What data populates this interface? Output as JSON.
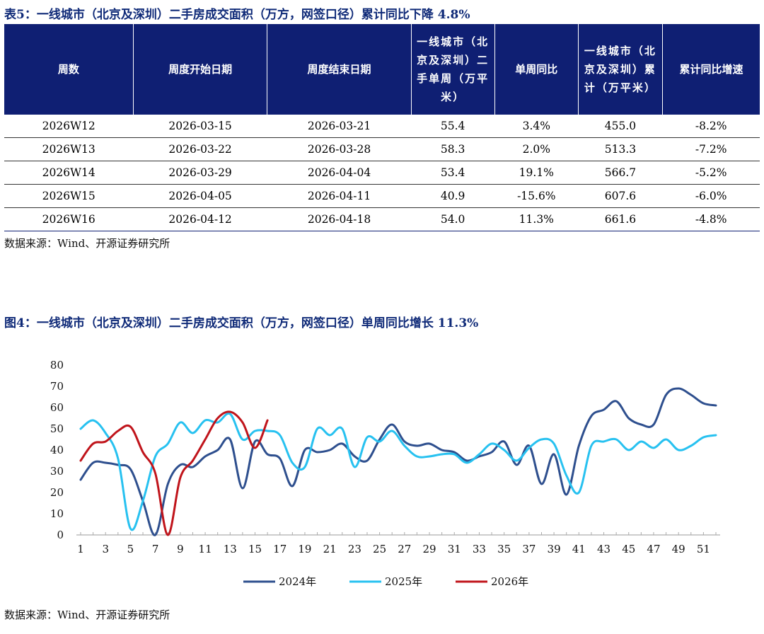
{
  "table": {
    "title": "表5：一线城市（北京及深圳）二手房成交面积（万方，网签口径）累计同比下降 4.8%",
    "headers": [
      "周数",
      "周度开始日期",
      "周度结束日期",
      "一线城市（北京及深圳）二手单周（万平米）",
      "单周同比",
      "一线城市（北京及深圳）累计（万平米）",
      "累计同比增速"
    ],
    "rows": [
      [
        "2026W12",
        "2026-03-15",
        "2026-03-21",
        "55.4",
        "3.4%",
        "455.0",
        "-8.2%"
      ],
      [
        "2026W13",
        "2026-03-22",
        "2026-03-28",
        "58.3",
        "2.0%",
        "513.3",
        "-7.2%"
      ],
      [
        "2026W14",
        "2026-03-29",
        "2026-04-04",
        "53.4",
        "19.1%",
        "566.7",
        "-5.2%"
      ],
      [
        "2026W15",
        "2026-04-05",
        "2026-04-11",
        "40.9",
        "-15.6%",
        "607.6",
        "-6.0%"
      ],
      [
        "2026W16",
        "2026-04-12",
        "2026-04-18",
        "54.0",
        "11.3%",
        "661.6",
        "-4.8%"
      ]
    ],
    "source": "数据来源：Wind、开源证券研究所"
  },
  "chart_data": {
    "type": "line",
    "title": "图4：一线城市（北京及深圳）二手房成交面积（万方，网签口径）单周同比增长 11.3%",
    "xlabel": "",
    "ylabel": "",
    "ylim": [
      0,
      80
    ],
    "yticks": [
      0,
      10,
      20,
      30,
      40,
      50,
      60,
      70,
      80
    ],
    "xlim": [
      1,
      52
    ],
    "xticks": [
      1,
      3,
      5,
      7,
      9,
      11,
      13,
      15,
      17,
      19,
      21,
      23,
      25,
      27,
      29,
      31,
      33,
      35,
      37,
      39,
      41,
      43,
      45,
      47,
      49,
      51
    ],
    "legend_position": "bottom",
    "grid": false,
    "series": [
      {
        "name": "2024年",
        "color": "#2e4f8e",
        "x": [
          1,
          2,
          3,
          4,
          5,
          6,
          7,
          8,
          9,
          10,
          11,
          12,
          13,
          14,
          15,
          16,
          17,
          18,
          19,
          20,
          21,
          22,
          23,
          24,
          25,
          26,
          27,
          28,
          29,
          30,
          31,
          32,
          33,
          34,
          35,
          36,
          37,
          38,
          39,
          40,
          41,
          42,
          43,
          44,
          45,
          46,
          47,
          48,
          49,
          50,
          51,
          52
        ],
        "values": [
          26,
          34,
          34,
          33,
          31,
          16,
          0,
          24,
          33,
          32,
          37,
          40,
          45,
          22,
          44,
          38,
          36,
          23,
          40,
          39,
          40,
          43,
          37,
          35,
          45,
          52,
          44,
          42,
          43,
          40,
          39,
          35,
          37,
          39,
          44,
          33,
          42,
          24,
          38,
          19,
          42,
          56,
          59,
          63,
          55,
          52,
          52,
          66,
          69,
          66,
          62,
          61
        ]
      },
      {
        "name": "2025年",
        "color": "#27c1f0",
        "x": [
          1,
          2,
          3,
          4,
          5,
          6,
          7,
          8,
          9,
          10,
          11,
          12,
          13,
          14,
          15,
          16,
          17,
          18,
          19,
          20,
          21,
          22,
          23,
          24,
          25,
          26,
          27,
          28,
          29,
          30,
          31,
          32,
          33,
          34,
          35,
          36,
          37,
          38,
          39,
          40,
          41,
          42,
          43,
          44,
          45,
          46,
          47,
          48,
          49,
          50,
          51,
          52
        ],
        "values": [
          50,
          54,
          48,
          36,
          3,
          16,
          37,
          43,
          53,
          48,
          54,
          53,
          57,
          45,
          49,
          49,
          47,
          34,
          32,
          50,
          47,
          50,
          32,
          46,
          44,
          49,
          42,
          37,
          37,
          38,
          38,
          34,
          38,
          43,
          40,
          35,
          41,
          45,
          43,
          28,
          20,
          42,
          44,
          45,
          40,
          44,
          41,
          45,
          40,
          42,
          46,
          47
        ]
      },
      {
        "name": "2026年",
        "color": "#c0141b",
        "x": [
          1,
          2,
          3,
          4,
          5,
          6,
          7,
          8,
          9,
          10,
          11,
          12,
          13,
          14,
          15,
          16
        ],
        "values": [
          35,
          43,
          44,
          49,
          51,
          39,
          29,
          0,
          27,
          35,
          45,
          55,
          58,
          53,
          41,
          54
        ]
      }
    ],
    "source": "数据来源：Wind、开源证券研究所"
  }
}
